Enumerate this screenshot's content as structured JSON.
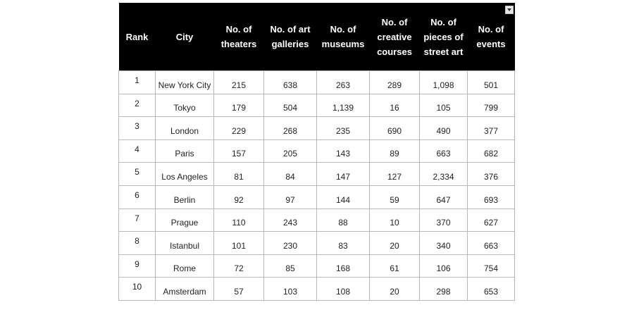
{
  "headers": {
    "rank": "Rank",
    "city": "City",
    "theaters": "No. of theaters",
    "galleries": "No. of art galleries",
    "museums": "No. of museums",
    "courses": "No. of creative courses",
    "street_art": "No. of pieces of street art",
    "events": "No. of events"
  },
  "filter_icon": "chevron-down-icon",
  "rows": [
    {
      "rank": "1",
      "city": "New York City",
      "theaters": "215",
      "galleries": "638",
      "museums": "263",
      "courses": "289",
      "street_art": "1,098",
      "events": "501"
    },
    {
      "rank": "2",
      "city": "Tokyo",
      "theaters": "179",
      "galleries": "504",
      "museums": "1,139",
      "courses": "16",
      "street_art": "105",
      "events": "799"
    },
    {
      "rank": "3",
      "city": "London",
      "theaters": "229",
      "galleries": "268",
      "museums": "235",
      "courses": "690",
      "street_art": "490",
      "events": "377"
    },
    {
      "rank": "4",
      "city": "Paris",
      "theaters": "157",
      "galleries": "205",
      "museums": "143",
      "courses": "89",
      "street_art": "663",
      "events": "682"
    },
    {
      "rank": "5",
      "city": "Los Angeles",
      "theaters": "81",
      "galleries": "84",
      "museums": "147",
      "courses": "127",
      "street_art": "2,334",
      "events": "376"
    },
    {
      "rank": "6",
      "city": "Berlin",
      "theaters": "92",
      "galleries": "97",
      "museums": "144",
      "courses": "59",
      "street_art": "647",
      "events": "693"
    },
    {
      "rank": "7",
      "city": "Prague",
      "theaters": "110",
      "galleries": "243",
      "museums": "88",
      "courses": "10",
      "street_art": "370",
      "events": "627"
    },
    {
      "rank": "8",
      "city": "Istanbul",
      "theaters": "101",
      "galleries": "230",
      "museums": "83",
      "courses": "20",
      "street_art": "340",
      "events": "663"
    },
    {
      "rank": "9",
      "city": "Rome",
      "theaters": "72",
      "galleries": "85",
      "museums": "168",
      "courses": "61",
      "street_art": "106",
      "events": "754"
    },
    {
      "rank": "10",
      "city": "Amsterdam",
      "theaters": "57",
      "galleries": "103",
      "museums": "108",
      "courses": "20",
      "street_art": "298",
      "events": "653"
    }
  ]
}
